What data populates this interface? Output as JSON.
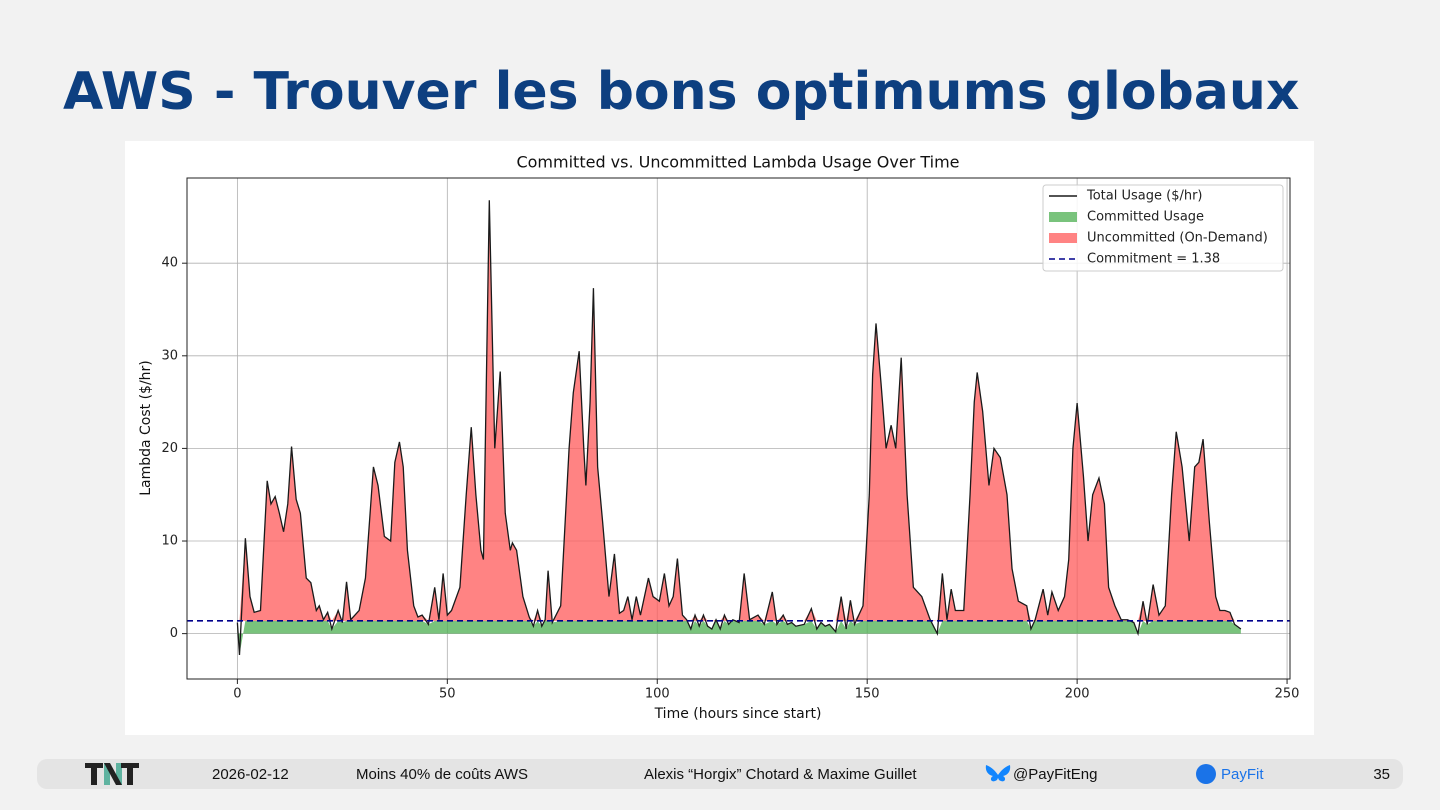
{
  "slide": {
    "title": "AWS - Trouver les bons optimums globaux"
  },
  "footer": {
    "date": "2026-02-12",
    "topic": "Moins 40% de coûts AWS",
    "authors": "Alexis “Horgix” Chotard & Maxime Guillet",
    "handle": "@PayFitEng",
    "brand": "PayFit",
    "page": "35"
  },
  "chart_data": {
    "type": "line",
    "title": "Committed vs. Uncommitted Lambda Usage Over Time",
    "x_label": "Time (hours since start)",
    "y_label": "Lambda Cost ($/hr)",
    "xlim": [
      -12,
      250.7
    ],
    "ylim": [
      -4.9,
      49.2
    ],
    "xticks": [
      0,
      50,
      100,
      150,
      200,
      250
    ],
    "yticks": [
      0,
      10,
      20,
      30,
      40
    ],
    "grid": true,
    "legend": "upper right",
    "x": [
      0,
      0.5,
      1.9,
      3,
      4,
      5.5,
      7.1,
      8,
      9,
      10,
      11,
      12,
      12.9,
      14,
      15,
      16.4,
      17.5,
      18.8,
      19.5,
      20.5,
      21.5,
      22.5,
      24,
      25,
      26,
      27,
      29,
      30.5,
      32.4,
      33.5,
      35,
      36.5,
      37.5,
      38.6,
      39.5,
      40.5,
      42,
      43,
      44,
      45.5,
      47,
      48,
      49,
      50,
      51,
      53,
      54.5,
      55.7,
      56.8,
      58,
      58.6,
      60,
      61.3,
      62.6,
      63.8,
      65,
      65.5,
      66.5,
      68,
      69.5,
      70.5,
      71.5,
      72.5,
      73.3,
      74,
      75,
      77,
      79,
      80,
      81.4,
      82.5,
      83,
      84,
      84.8,
      85.8,
      87,
      88.5,
      89.8,
      91,
      92,
      93,
      94,
      95,
      96,
      97.9,
      99,
      100.5,
      101.7,
      102.8,
      103.8,
      104.8,
      106,
      107,
      108,
      109,
      110,
      111,
      112,
      113,
      114,
      115,
      116,
      117,
      118,
      119.5,
      120.7,
      122,
      124,
      125.5,
      127.4,
      128.5,
      130,
      131,
      132,
      133,
      135,
      136.7,
      138,
      139,
      140,
      141,
      142.5,
      143.8,
      145,
      146,
      147,
      149,
      150.5,
      151.3,
      152.1,
      153.3,
      154.5,
      155.7,
      156.8,
      158.1,
      159.5,
      161,
      163,
      165,
      166.7,
      167.9,
      169,
      170,
      171,
      173,
      174.5,
      175.5,
      176.2,
      177.5,
      179,
      180.2,
      181.7,
      183.3,
      184.5,
      186,
      188,
      189,
      190,
      191.9,
      193,
      194,
      195.5,
      197,
      198,
      199,
      200,
      201.5,
      202.6,
      203.7,
      205.2,
      206.5,
      207.5,
      209,
      210.5,
      212,
      213.5,
      214.5,
      215.7,
      216.7,
      218.1,
      219.5,
      221,
      222.5,
      223.6,
      225,
      226.7,
      228,
      229,
      230,
      231.5,
      233,
      234,
      235.2,
      236.4,
      237.5,
      239
    ],
    "series": [
      {
        "name": "Total Usage ($/hr)",
        "color": "#1a1a1a",
        "values": [
          1.2,
          -2.3,
          10.3,
          4,
          2.3,
          2.5,
          16.5,
          14,
          14.8,
          13,
          11,
          14,
          20.2,
          14.5,
          13,
          6,
          5.5,
          2.5,
          3,
          1.5,
          2.3,
          0.5,
          2.5,
          1.2,
          5.6,
          1.5,
          2.5,
          6,
          18,
          16,
          10.5,
          10,
          18.5,
          20.7,
          18,
          9,
          3,
          1.8,
          2,
          1,
          5,
          1.5,
          6.5,
          2,
          2.5,
          5,
          15,
          22.3,
          15,
          9,
          8,
          46.8,
          20,
          28.3,
          13,
          9,
          9.8,
          9,
          4,
          1.8,
          0.8,
          2.5,
          0.8,
          1.5,
          6.8,
          1.2,
          3,
          20,
          26,
          30.5,
          20,
          16,
          25,
          37.3,
          18,
          12,
          4,
          8.6,
          2.2,
          2.5,
          4,
          1.5,
          4,
          2,
          6,
          4,
          3.5,
          6.5,
          3,
          4,
          8.1,
          2,
          1.5,
          0.5,
          2,
          0.8,
          2,
          0.8,
          0.5,
          1.5,
          0.5,
          2,
          1,
          1.5,
          1.2,
          6.5,
          1.5,
          2,
          1,
          4.5,
          1,
          2,
          1,
          1.2,
          0.8,
          1,
          2.7,
          0.5,
          1.2,
          0.8,
          1,
          0.2,
          4,
          0.5,
          3.6,
          1,
          3,
          15,
          28,
          33.5,
          27,
          20,
          22.5,
          20,
          29.8,
          15,
          5,
          4,
          1.5,
          0,
          6.5,
          1.5,
          4.8,
          2.5,
          2.5,
          15,
          25,
          28.2,
          24,
          16,
          20,
          19,
          15,
          7,
          3.5,
          3,
          0.5,
          1.5,
          4.8,
          2,
          4.5,
          2.5,
          4,
          8,
          20,
          24.9,
          17,
          10,
          15,
          16.8,
          14,
          5,
          3,
          1.5,
          1.5,
          1.2,
          0,
          3.5,
          1,
          5.3,
          2,
          3,
          15,
          21.8,
          18,
          10,
          18,
          18.5,
          21,
          12,
          4,
          2.5,
          2.5,
          2.3,
          1,
          0.5
        ]
      }
    ],
    "areas": [
      {
        "name": "Committed Usage",
        "color": "#4caf50"
      },
      {
        "name": "Uncommitted (On-Demand)",
        "color": "#ff5a5a"
      }
    ],
    "commitment": {
      "name": "Commitment = 1.38",
      "value": 1.38,
      "color": "#00008b"
    }
  }
}
